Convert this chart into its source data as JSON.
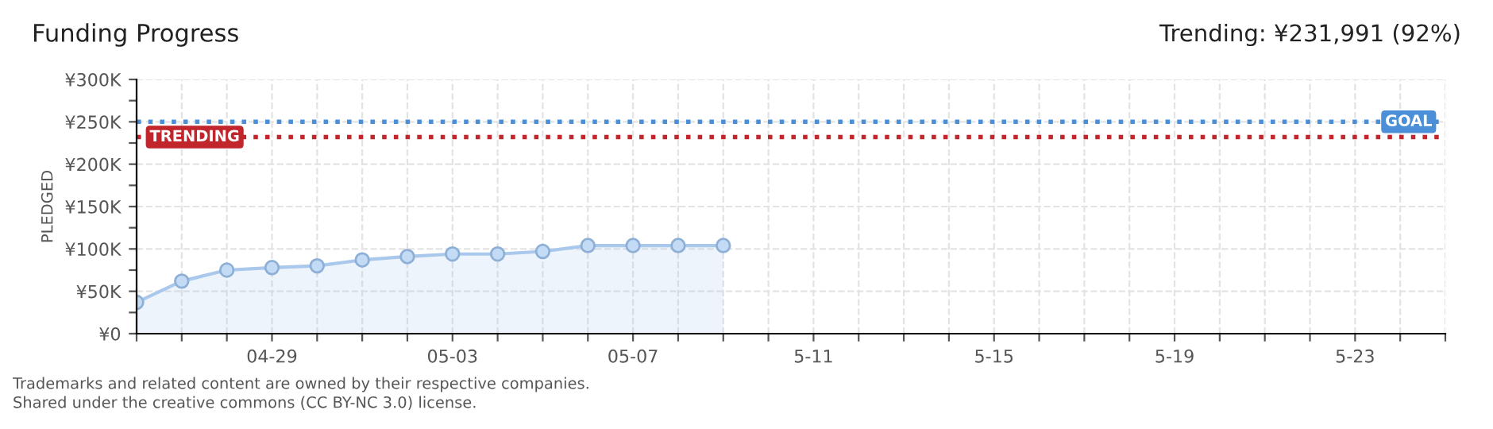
{
  "chart_data": {
    "type": "area",
    "title": "Funding Progress",
    "subtitle": "Trending: ¥231,991 (92%)",
    "ylabel": "PLEDGED",
    "categories": [
      null,
      null,
      null,
      "04-29",
      null,
      null,
      null,
      "05-03",
      null,
      null,
      null,
      "05-07",
      null,
      null,
      null,
      "5-11",
      null,
      null,
      null,
      "5-15",
      null,
      null,
      null,
      "5-19",
      null,
      null,
      null,
      "5-23",
      null,
      null
    ],
    "series": [
      {
        "color": "#a9c8ec",
        "values": [
          37000,
          62000,
          75000,
          78000,
          80000,
          87000,
          91000,
          94000,
          94000,
          97000,
          104000,
          104000,
          104000,
          104000,
          null,
          null,
          null,
          null,
          null,
          null,
          null,
          null,
          null,
          null,
          null,
          null,
          null,
          null,
          null,
          null
        ]
      }
    ],
    "ylim": [
      0,
      300000
    ],
    "yticks": [
      {
        "value": 0,
        "label": "¥0"
      },
      {
        "value": 25000,
        "label": null
      },
      {
        "value": 50000,
        "label": "¥50K"
      },
      {
        "value": 75000,
        "label": null
      },
      {
        "value": 100000,
        "label": "¥100K"
      },
      {
        "value": 125000,
        "label": null
      },
      {
        "value": 150000,
        "label": "¥150K"
      },
      {
        "value": 175000,
        "label": null
      },
      {
        "value": 200000,
        "label": "¥200K"
      },
      {
        "value": 225000,
        "label": null
      },
      {
        "value": 250000,
        "label": "¥250K"
      },
      {
        "value": 275000,
        "label": null
      },
      {
        "value": 300000,
        "label": "¥300K"
      }
    ],
    "ref_lines": [
      {
        "axis": "y",
        "value": 250000,
        "label": "GOAL",
        "color": "#4a8fd8",
        "line_style": "dotted"
      },
      {
        "axis": "y",
        "value": 231991,
        "label": "TRENDING",
        "color": "#c0262b",
        "line_style": "dotted"
      }
    ],
    "grid": true,
    "marker": "circle",
    "legend": false,
    "annotations": [
      "Trademarks and related content are owned by their respective companies.",
      "Shared under the creative commons (CC BY-NC 3.0) license."
    ]
  }
}
